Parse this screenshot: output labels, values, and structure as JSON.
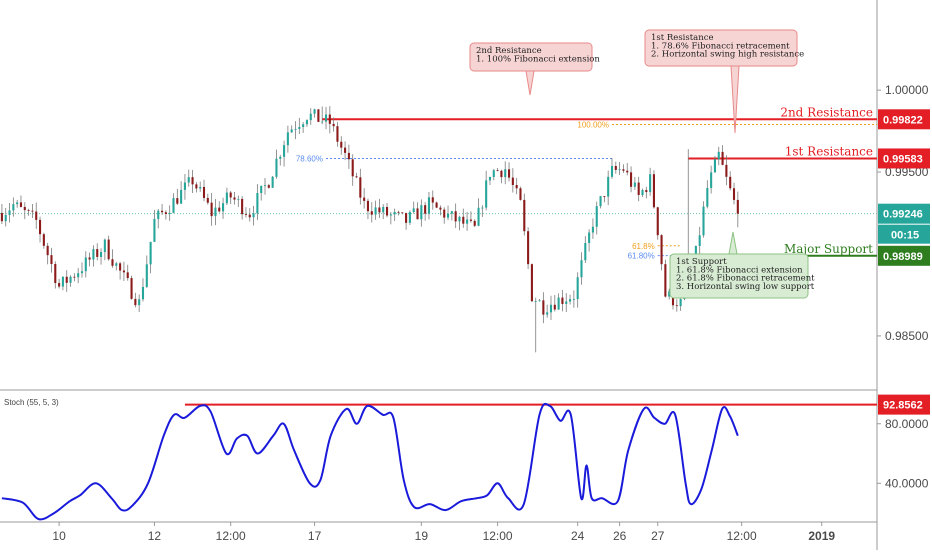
{
  "chart_data": {
    "type": "candlestick",
    "price_axis": {
      "range": [
        0.9817,
        1.0055
      ],
      "ticks": [
        "1.00000",
        "0.99500",
        "0.98500"
      ],
      "tick_values": [
        1.0,
        0.995,
        0.985
      ]
    },
    "time_axis": {
      "ticks": [
        "10",
        "12",
        "12:00",
        "17",
        "19",
        "12:00",
        "24",
        "26",
        "27",
        "12:00",
        "2019"
      ],
      "tick_positions": [
        15,
        40,
        60,
        82,
        110,
        130,
        151,
        162,
        172,
        194,
        215
      ]
    },
    "candles": [],
    "levels": [
      {
        "id": "resistance2",
        "name": "2nd Resistance",
        "value": 0.99822,
        "label": "0.99822",
        "color": "#e31e24"
      },
      {
        "id": "resistance1",
        "name": "1st Resistance",
        "value": 0.99583,
        "label": "0.99583",
        "color": "#e31e24"
      },
      {
        "id": "support",
        "name": "Major Support",
        "value": 0.98989,
        "label": "0.98989",
        "color": "#2e7d1f"
      }
    ],
    "current_price": {
      "value": 0.99246,
      "label": "0.99246",
      "countdown": "00:15",
      "color": "#26a69a"
    },
    "fib_levels": [
      {
        "label": "100.00%",
        "value": 0.9979,
        "color": "#f0a020"
      },
      {
        "label": "78.60%",
        "value": 0.99583,
        "color": "#5b8def"
      },
      {
        "label": "61.8%",
        "value": 0.9905,
        "color": "#f0a020"
      },
      {
        "label": "61.80%",
        "value": 0.9899,
        "color": "#5b8def"
      }
    ],
    "annotations": [
      {
        "id": "note-resistance2",
        "style": "red",
        "lines": [
          "2nd Resistance",
          "1. 100% Fibonacci extension"
        ]
      },
      {
        "id": "note-resistance1",
        "style": "red",
        "lines": [
          "1st Resistance",
          "1. 78.6% Fibonacci retracement",
          "2. Horizontal swing high resistance"
        ]
      },
      {
        "id": "note-support",
        "style": "green",
        "lines": [
          "1st Support",
          "1. 61.8% Fibonacci extension",
          "2. 61.8% Fibonacci retracement",
          "3. Horizontal swing low support"
        ]
      }
    ],
    "indicator": {
      "title": "Stoch (55, 5, 3)",
      "range": [
        14,
        102
      ],
      "ticks": [
        "80.0000",
        "40.0000"
      ],
      "tick_values": [
        80,
        40
      ],
      "level": {
        "value": 92.8562,
        "label": "92.8562",
        "color": "#e31e24"
      },
      "line_color": "#1a1adb",
      "values": []
    },
    "colors": {
      "up": "#26a69a",
      "down": "#8b1a1a",
      "wick": "#7a7a7a"
    }
  }
}
